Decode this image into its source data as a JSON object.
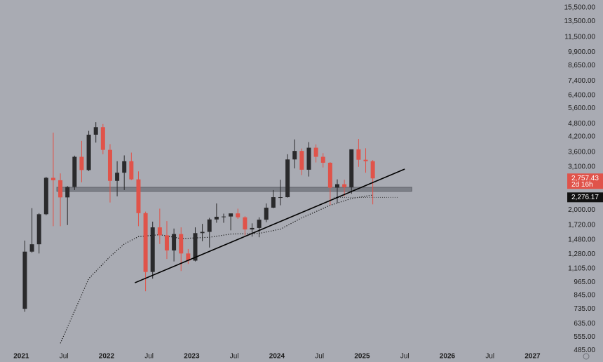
{
  "chart_data": {
    "type": "candlestick",
    "log_scale": true,
    "up_color": "#2a2a2c",
    "down_color": "#e0534a",
    "ylim": [
      16760,
      482
    ],
    "yticks": [
      {
        "value": 15500,
        "label": "15,500.00"
      },
      {
        "value": 13500,
        "label": "13,500.00"
      },
      {
        "value": 11500,
        "label": "11,500.00"
      },
      {
        "value": 9900,
        "label": "9,900.00"
      },
      {
        "value": 8650,
        "label": "8,650.00"
      },
      {
        "value": 7400,
        "label": "7,400.00"
      },
      {
        "value": 6400,
        "label": "6,400.00"
      },
      {
        "value": 5600,
        "label": "5,600.00"
      },
      {
        "value": 4800,
        "label": "4,800.00"
      },
      {
        "value": 4200,
        "label": "4,200.00"
      },
      {
        "value": 3600,
        "label": "3,600.00"
      },
      {
        "value": 3100,
        "label": "3,100.00"
      },
      {
        "value": 2000,
        "label": "2,000.00"
      },
      {
        "value": 1720,
        "label": "1,720.00"
      },
      {
        "value": 1480,
        "label": "1,480.00"
      },
      {
        "value": 1280,
        "label": "1,280.00"
      },
      {
        "value": 1105,
        "label": "1,105.00"
      },
      {
        "value": 965,
        "label": "965.00"
      },
      {
        "value": 845,
        "label": "845.00"
      },
      {
        "value": 735,
        "label": "735.00"
      },
      {
        "value": 635,
        "label": "635.00"
      },
      {
        "value": 555,
        "label": "555.00"
      },
      {
        "value": 485,
        "label": "485.00"
      }
    ],
    "xlim": [
      "2020-10",
      "2027-05"
    ],
    "xticks": [
      {
        "value": "2021-01",
        "label": "2021"
      },
      {
        "value": "2021-07",
        "label": "Jul"
      },
      {
        "value": "2022-01",
        "label": "2022"
      },
      {
        "value": "2022-07",
        "label": "Jul"
      },
      {
        "value": "2023-01",
        "label": "2023"
      },
      {
        "value": "2023-07",
        "label": "Jul"
      },
      {
        "value": "2024-01",
        "label": "2024"
      },
      {
        "value": "2024-07",
        "label": "Jul"
      },
      {
        "value": "2025-01",
        "label": "2025"
      },
      {
        "value": "2025-07",
        "label": "Jul"
      },
      {
        "value": "2026-01",
        "label": "2026"
      },
      {
        "value": "2026-07",
        "label": "Jul"
      },
      {
        "value": "2027-01",
        "label": "2027"
      }
    ],
    "x": [
      "2021-01",
      "2021-02",
      "2021-03",
      "2021-04",
      "2021-05",
      "2021-06",
      "2021-07",
      "2021-08",
      "2021-09",
      "2021-10",
      "2021-11",
      "2021-12",
      "2022-01",
      "2022-02",
      "2022-03",
      "2022-04",
      "2022-05",
      "2022-06",
      "2022-07",
      "2022-08",
      "2022-09",
      "2022-10",
      "2022-11",
      "2022-12",
      "2023-01",
      "2023-02",
      "2023-03",
      "2023-04",
      "2023-05",
      "2023-06",
      "2023-07",
      "2023-08",
      "2023-09",
      "2023-10",
      "2023-11",
      "2023-12",
      "2024-01",
      "2024-02",
      "2024-03",
      "2024-04",
      "2024-05",
      "2024-06",
      "2024-07",
      "2024-08",
      "2024-09",
      "2024-10",
      "2024-11",
      "2024-12",
      "2025-01",
      "2025-02"
    ],
    "open": [
      737,
      1314,
      1416,
      1919,
      2773,
      2706,
      2275,
      2530,
      3430,
      3000,
      4290,
      4630,
      3680,
      2690,
      2920,
      3280,
      2730,
      1940,
      1070,
      1680,
      1550,
      1330,
      1570,
      1290,
      1200,
      1585,
      1605,
      1820,
      1870,
      1875,
      1935,
      1860,
      1645,
      1670,
      1815,
      2050,
      2280,
      2280,
      3340,
      3640,
      3010,
      3760,
      3430,
      3230,
      2510,
      2600,
      2520,
      3700,
      3330,
      3280
    ],
    "high": [
      1470,
      2040,
      1940,
      2800,
      4380,
      2900,
      2550,
      3470,
      4030,
      4460,
      4870,
      4780,
      3900,
      3280,
      3480,
      3580,
      2960,
      1970,
      1780,
      2030,
      1790,
      1660,
      1680,
      1350,
      1680,
      1740,
      1850,
      2140,
      1930,
      1930,
      2030,
      1880,
      1750,
      1860,
      2140,
      2450,
      2720,
      3520,
      4090,
      3730,
      3980,
      3890,
      3560,
      3250,
      2730,
      2720,
      3680,
      4110,
      3740,
      3320
    ],
    "low": [
      715,
      1300,
      1290,
      1900,
      1700,
      1700,
      1720,
      2450,
      2650,
      2970,
      3960,
      3520,
      2160,
      2300,
      2450,
      2710,
      1700,
      880,
      1000,
      1420,
      1220,
      1190,
      1080,
      1160,
      1190,
      1460,
      1370,
      1760,
      1760,
      1630,
      1830,
      1550,
      1530,
      1520,
      1770,
      2040,
      2100,
      2270,
      3050,
      2850,
      2810,
      3240,
      3080,
      2110,
      2150,
      2310,
      2360,
      3100,
      2920,
      2120
    ],
    "close": [
      1314,
      1416,
      1919,
      2773,
      2706,
      2275,
      2530,
      3430,
      3000,
      4290,
      4630,
      3680,
      2690,
      2920,
      3280,
      2730,
      1940,
      1070,
      1680,
      1550,
      1330,
      1570,
      1290,
      1200,
      1585,
      1605,
      1820,
      1870,
      1875,
      1935,
      1860,
      1645,
      1670,
      1815,
      2050,
      2280,
      2280,
      3340,
      3640,
      3010,
      3760,
      3430,
      3230,
      2510,
      2600,
      2520,
      3700,
      3330,
      3280,
      2757.43
    ],
    "moving_average": {
      "x": [
        "2021-06",
        "2021-08",
        "2021-10",
        "2022-01",
        "2022-03",
        "2022-05",
        "2022-08",
        "2022-11",
        "2023-03",
        "2023-06",
        "2023-10",
        "2024-01",
        "2024-04",
        "2024-08",
        "2024-11",
        "2025-02"
      ],
      "values": [
        520,
        720,
        1000,
        1250,
        1420,
        1530,
        1560,
        1500,
        1520,
        1570,
        1580,
        1650,
        1850,
        2100,
        2250,
        2330
      ]
    },
    "trendline": {
      "x": [
        "2022-05",
        "2025-07"
      ],
      "values": [
        959,
        3029
      ]
    },
    "zone": {
      "x": [
        "2021-06",
        "2025-08"
      ],
      "range": [
        2420,
        2520
      ]
    },
    "last_price": {
      "value": 2757.43,
      "label": "2,757.43",
      "countdown": "2d 16h"
    },
    "reference_price": {
      "value": 2276.17,
      "label": "2,276.17",
      "x": [
        "2024-09",
        "2025-06"
      ]
    }
  }
}
